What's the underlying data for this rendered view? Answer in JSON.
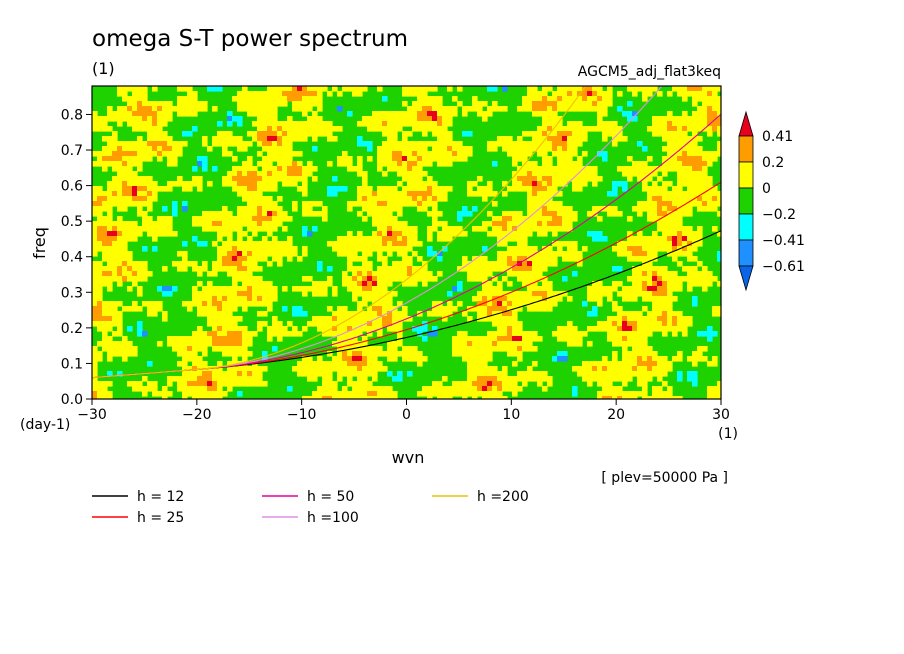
{
  "chart_data": {
    "type": "heatmap",
    "title": "omega S-T power spectrum",
    "subtitle_left": "(1)",
    "subtitle_right": "AGCM5_adj_flat3keq",
    "xlabel": "wvn",
    "ylabel": "freq",
    "x_unit": "(1)",
    "y_unit": "(day-1)",
    "xlim": [
      -30,
      30
    ],
    "ylim": [
      0.0,
      0.88
    ],
    "x_ticks": [
      "-30",
      "-20",
      "-10",
      "0",
      "10",
      "20",
      "30"
    ],
    "y_ticks": [
      "0.0",
      "0.1",
      "0.2",
      "0.3",
      "0.4",
      "0.5",
      "0.6",
      "0.7",
      "0.8"
    ],
    "note": "[ plev=50000 Pa ]",
    "colorbar": {
      "levels": [
        "0.41",
        "0.2",
        "0",
        "-0.2",
        "-0.41",
        "-0.61"
      ],
      "colors": [
        "#e8001c",
        "#ff9c00",
        "#ffff00",
        "#1ed200",
        "#00ffff",
        "#1e90ff",
        "#0a64e6"
      ]
    },
    "series": [
      {
        "name": "h = 12",
        "color": "#000000",
        "h": 12
      },
      {
        "name": "h = 25",
        "color": "#ff0000",
        "h": 25
      },
      {
        "name": "h = 50",
        "color": "#e000a0",
        "h": 50
      },
      {
        "name": "h =100",
        "color": "#e090e0",
        "h": 100
      },
      {
        "name": "h =200",
        "color": "#f0c000",
        "h": 200
      }
    ]
  }
}
